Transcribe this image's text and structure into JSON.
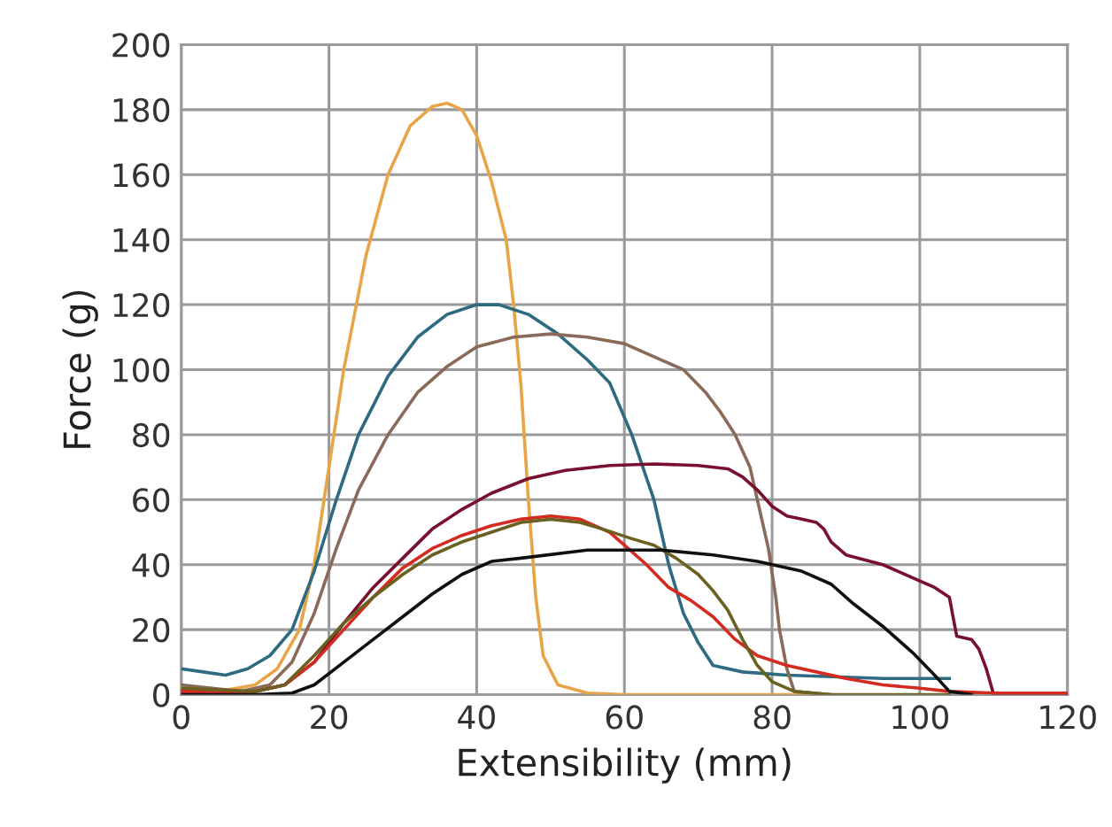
{
  "chart_data": {
    "type": "line",
    "xlabel": "Extensibility (mm)",
    "ylabel": "Force (g)",
    "xlim": [
      0,
      120
    ],
    "ylim": [
      0,
      200
    ],
    "xticks": [
      0,
      20,
      40,
      60,
      80,
      100,
      120
    ],
    "yticks": [
      0,
      20,
      40,
      60,
      80,
      100,
      120,
      140,
      160,
      180,
      200
    ],
    "grid": true,
    "marker": "none",
    "line_style": "solid",
    "series": [
      {
        "color": "#e8a548",
        "x": [
          0,
          5,
          10,
          13,
          16,
          18,
          20,
          22,
          25,
          28,
          31,
          34,
          36,
          38,
          40,
          42,
          44,
          45,
          46,
          47,
          48,
          49,
          51,
          55,
          60,
          70,
          80,
          85
        ],
        "values": [
          2,
          1,
          3,
          8,
          20,
          40,
          70,
          100,
          135,
          160,
          175,
          181,
          182,
          180,
          172,
          158,
          140,
          120,
          95,
          60,
          30,
          12,
          3,
          0.5,
          0,
          0,
          0,
          0
        ]
      },
      {
        "color": "#2e6a80",
        "x": [
          0,
          3,
          6,
          9,
          12,
          15,
          18,
          21,
          24,
          28,
          32,
          36,
          40,
          43,
          47,
          51,
          55,
          58,
          61,
          64,
          66,
          68,
          70,
          72,
          76,
          82,
          95,
          104
        ],
        "values": [
          8,
          7,
          6,
          8,
          12,
          20,
          38,
          60,
          80,
          98,
          110,
          117,
          120,
          120,
          117,
          111,
          103,
          96,
          80,
          60,
          40,
          25,
          16,
          9,
          7,
          6,
          5,
          5
        ]
      },
      {
        "color": "#8a6a58",
        "x": [
          0,
          8,
          12,
          15,
          18,
          21,
          24,
          28,
          32,
          36,
          40,
          45,
          50,
          55,
          60,
          64,
          68,
          71,
          73,
          75,
          77,
          78,
          79.5,
          80.5,
          81,
          82,
          83,
          88
        ],
        "values": [
          3,
          1,
          3,
          10,
          25,
          45,
          63,
          80,
          93,
          101,
          107,
          110,
          111,
          110,
          108,
          104,
          100,
          93,
          87,
          80,
          70,
          60,
          45,
          30,
          20,
          8,
          1,
          0
        ]
      },
      {
        "color": "#7a1030",
        "x": [
          0,
          10,
          14,
          18,
          22,
          26,
          30,
          34,
          38,
          42,
          47,
          52,
          58,
          64,
          70,
          74,
          76,
          78,
          80,
          82,
          84,
          86,
          87,
          88,
          90,
          95,
          100,
          102,
          104,
          104.5,
          105,
          107,
          108,
          109,
          110,
          120
        ],
        "values": [
          1,
          1,
          3,
          10,
          22,
          33,
          42,
          51,
          57,
          62,
          66.5,
          69,
          70.5,
          71,
          70.5,
          69.5,
          67,
          63,
          58,
          55,
          54,
          53,
          51,
          47,
          43,
          40,
          35,
          33,
          30,
          24,
          18,
          17,
          14,
          8,
          0,
          0
        ]
      },
      {
        "color": "#d42a20",
        "x": [
          0,
          10,
          14,
          18,
          22,
          26,
          30,
          34,
          38,
          42,
          46,
          50,
          54,
          58,
          60,
          63,
          66,
          69,
          72,
          75,
          78,
          82,
          86,
          90,
          95,
          100,
          104,
          110,
          120
        ],
        "values": [
          1,
          1,
          3,
          10,
          20,
          30,
          39,
          45,
          49,
          52,
          54,
          55,
          54,
          50,
          46,
          40,
          33,
          29,
          24,
          17,
          12,
          9,
          7,
          5,
          3,
          2,
          1,
          0.5,
          0.5
        ]
      },
      {
        "color": "#6a6020",
        "x": [
          0,
          10,
          14,
          18,
          22,
          26,
          30,
          34,
          38,
          42,
          46,
          50,
          54,
          57,
          61,
          64,
          67,
          70,
          72,
          74,
          76,
          78,
          80,
          83,
          88,
          100,
          104
        ],
        "values": [
          2,
          1,
          3,
          12,
          22,
          30,
          37,
          43,
          47,
          50,
          53,
          54,
          53,
          51,
          48,
          46,
          42,
          37,
          32,
          26,
          17,
          9,
          4,
          1,
          0,
          0,
          0
        ]
      },
      {
        "color": "#101010",
        "x": [
          0,
          10,
          15,
          18,
          22,
          26,
          30,
          34,
          38,
          42,
          46,
          55,
          65,
          72,
          78,
          84,
          88,
          91,
          95,
          99,
          102,
          104,
          107
        ],
        "values": [
          0,
          0,
          0.5,
          3,
          10,
          17,
          24,
          31,
          37,
          41,
          42,
          44.5,
          44.5,
          43,
          41,
          38,
          34,
          28,
          21,
          13,
          6,
          1,
          0
        ]
      }
    ]
  }
}
